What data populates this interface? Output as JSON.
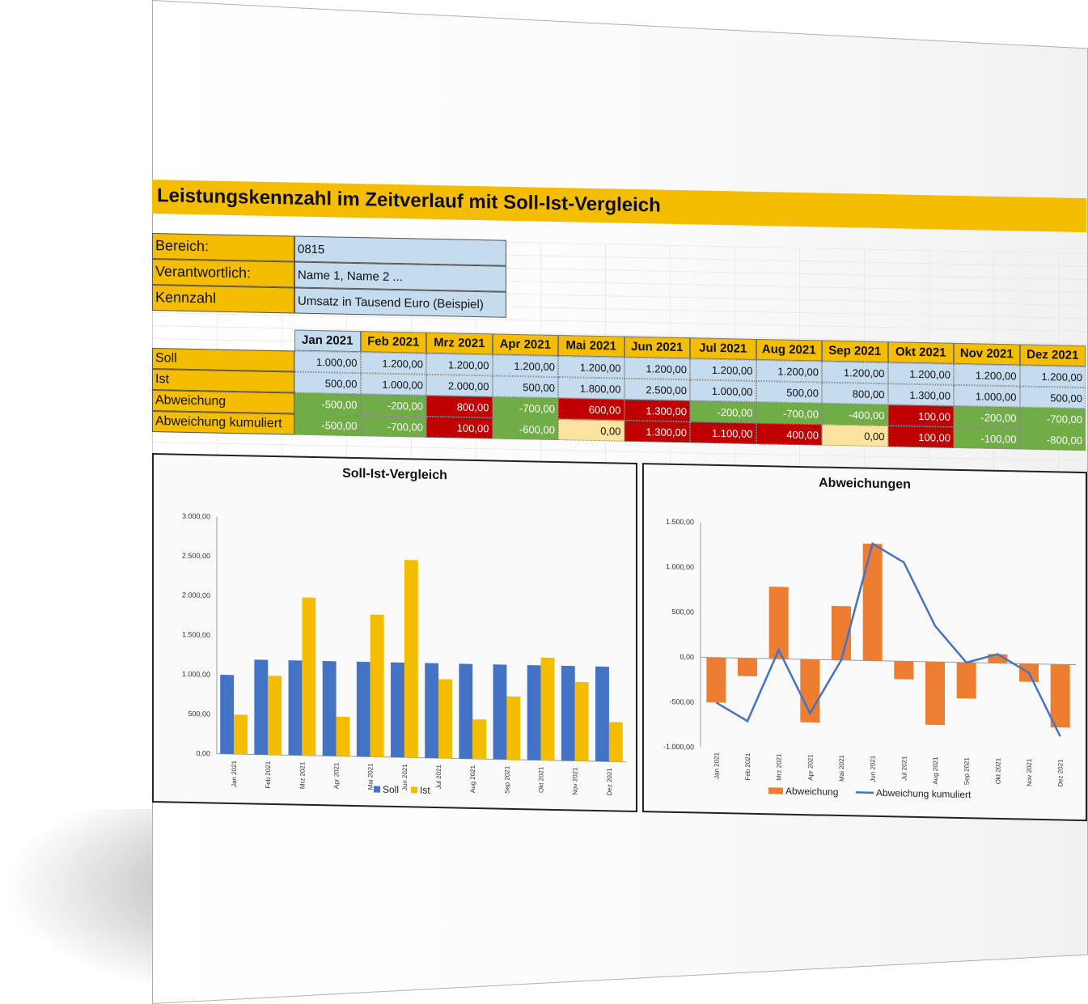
{
  "title": "Leistungskennzahl im Zeitverlauf mit Soll-Ist-Vergleich",
  "info": [
    {
      "label": "Bereich:",
      "value": "0815"
    },
    {
      "label": "Verantwortlich:",
      "value": "Name 1, Name 2 ..."
    },
    {
      "label": "Kennzahl",
      "value": "Umsatz in Tausend Euro (Beispiel)"
    }
  ],
  "months": [
    "Jan 2021",
    "Feb 2021",
    "Mrz 2021",
    "Apr 2021",
    "Mai 2021",
    "Jun 2021",
    "Jul 2021",
    "Aug 2021",
    "Sep 2021",
    "Okt 2021",
    "Nov 2021",
    "Dez 2021"
  ],
  "rows": [
    {
      "label": "Soll",
      "cells": [
        {
          "v": "1.000,00",
          "s": "base"
        },
        {
          "v": "1.200,00",
          "s": "base"
        },
        {
          "v": "1.200,00",
          "s": "base"
        },
        {
          "v": "1.200,00",
          "s": "base"
        },
        {
          "v": "1.200,00",
          "s": "base"
        },
        {
          "v": "1.200,00",
          "s": "base"
        },
        {
          "v": "1.200,00",
          "s": "base"
        },
        {
          "v": "1.200,00",
          "s": "base"
        },
        {
          "v": "1.200,00",
          "s": "base"
        },
        {
          "v": "1.200,00",
          "s": "base"
        },
        {
          "v": "1.200,00",
          "s": "base"
        },
        {
          "v": "1.200,00",
          "s": "base"
        }
      ]
    },
    {
      "label": "Ist",
      "cells": [
        {
          "v": "500,00",
          "s": "base"
        },
        {
          "v": "1.000,00",
          "s": "base"
        },
        {
          "v": "2.000,00",
          "s": "base"
        },
        {
          "v": "500,00",
          "s": "base"
        },
        {
          "v": "1.800,00",
          "s": "base"
        },
        {
          "v": "2.500,00",
          "s": "base"
        },
        {
          "v": "1.000,00",
          "s": "base"
        },
        {
          "v": "500,00",
          "s": "base"
        },
        {
          "v": "800,00",
          "s": "base"
        },
        {
          "v": "1.300,00",
          "s": "base"
        },
        {
          "v": "1.000,00",
          "s": "base"
        },
        {
          "v": "500,00",
          "s": "base"
        }
      ]
    },
    {
      "label": "Abweichung",
      "cells": [
        {
          "v": "-500,00",
          "s": "green"
        },
        {
          "v": "-200,00",
          "s": "green"
        },
        {
          "v": "800,00",
          "s": "red"
        },
        {
          "v": "-700,00",
          "s": "green"
        },
        {
          "v": "600,00",
          "s": "red"
        },
        {
          "v": "1.300,00",
          "s": "red"
        },
        {
          "v": "-200,00",
          "s": "green"
        },
        {
          "v": "-700,00",
          "s": "green"
        },
        {
          "v": "-400,00",
          "s": "green"
        },
        {
          "v": "100,00",
          "s": "red"
        },
        {
          "v": "-200,00",
          "s": "green"
        },
        {
          "v": "-700,00",
          "s": "green"
        }
      ]
    },
    {
      "label": "Abweichung kumuliert",
      "cells": [
        {
          "v": "-500,00",
          "s": "green"
        },
        {
          "v": "-700,00",
          "s": "green"
        },
        {
          "v": "100,00",
          "s": "red"
        },
        {
          "v": "-600,00",
          "s": "green"
        },
        {
          "v": "0,00",
          "s": "yellow"
        },
        {
          "v": "1.300,00",
          "s": "red"
        },
        {
          "v": "1.100,00",
          "s": "red"
        },
        {
          "v": "400,00",
          "s": "red"
        },
        {
          "v": "0,00",
          "s": "yellow"
        },
        {
          "v": "100,00",
          "s": "red"
        },
        {
          "v": "-100,00",
          "s": "green"
        },
        {
          "v": "-800,00",
          "s": "green"
        }
      ]
    }
  ],
  "colors": {
    "accent": "#f5bd00",
    "base_cell": "#c5dcef",
    "over_target": "#70ad47",
    "under_target": "#c00000",
    "neutral": "#fce4a0",
    "soll": "#4472c4",
    "ist": "#f5bd00",
    "abweichung": "#ed7d31",
    "kumuliert": "#4472c4"
  },
  "chart_data": [
    {
      "type": "bar",
      "title": "Soll-Ist-Vergleich",
      "categories": [
        "Jan 2021",
        "Feb 2021",
        "Mrz 2021",
        "Apr 2021",
        "Mai 2021",
        "Jun 2021",
        "Jul 2021",
        "Aug 2021",
        "Sep 2021",
        "Okt 2021",
        "Nov 2021",
        "Dez 2021"
      ],
      "series": [
        {
          "name": "Soll",
          "values": [
            1000,
            1200,
            1200,
            1200,
            1200,
            1200,
            1200,
            1200,
            1200,
            1200,
            1200,
            1200
          ]
        },
        {
          "name": "Ist",
          "values": [
            500,
            1000,
            2000,
            500,
            1800,
            2500,
            1000,
            500,
            800,
            1300,
            1000,
            500
          ]
        }
      ],
      "yticks": [
        "0,00",
        "500,00",
        "1.000,00",
        "1.500,00",
        "2.000,00",
        "2.500,00",
        "3.000,00"
      ],
      "ylim": [
        0,
        3000
      ],
      "legend": "bottom",
      "grid": false
    },
    {
      "type": "bar",
      "title": "Abweichungen",
      "categories": [
        "Jan 2021",
        "Feb 2021",
        "Mrz 2021",
        "Apr 2021",
        "Mai 2021",
        "Jun 2021",
        "Jul 2021",
        "Aug 2021",
        "Sep 2021",
        "Okt 2021",
        "Nov 2021",
        "Dez 2021"
      ],
      "series": [
        {
          "name": "Abweichung",
          "type": "bar",
          "values": [
            -500,
            -200,
            800,
            -700,
            600,
            1300,
            -200,
            -700,
            -400,
            100,
            -200,
            -700
          ]
        },
        {
          "name": "Abweichung kumuliert",
          "type": "line",
          "values": [
            -500,
            -700,
            100,
            -600,
            0,
            1300,
            1100,
            400,
            0,
            100,
            -100,
            -800
          ]
        }
      ],
      "yticks": [
        "-1.000,00",
        "-500,00",
        "0,00",
        "500,00",
        "1.000,00",
        "1.500,00"
      ],
      "ylim": [
        -1000,
        1500
      ],
      "legend": "bottom",
      "grid": false
    }
  ]
}
